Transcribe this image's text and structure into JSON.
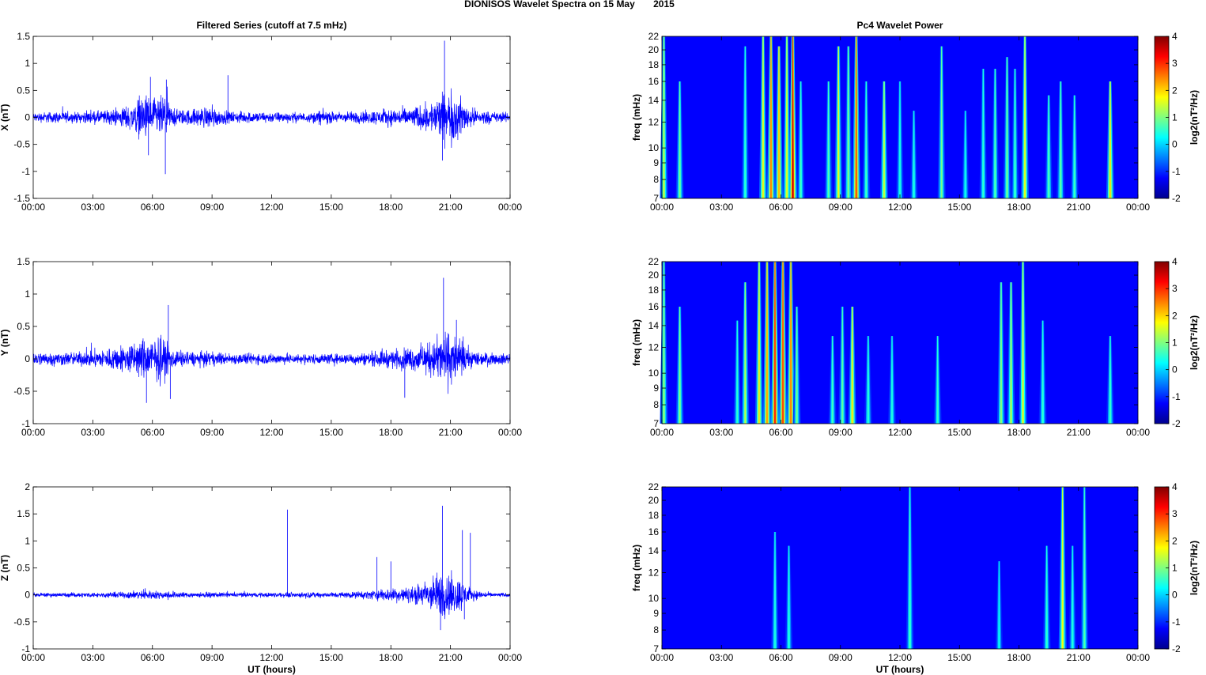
{
  "figure": {
    "title": "DIONISOS Wavelet Spectra on 15 May       2015"
  },
  "chart_data": [
    {
      "type": "line",
      "panel": "left-top",
      "title": "Filtered Series (cutoff at 7.5 mHz)",
      "xlabel": "",
      "ylabel": "X (nT)",
      "xlim": [
        0,
        24
      ],
      "ylim": [
        -1.5,
        1.5
      ],
      "yticks": [
        -1.5,
        -1,
        -0.5,
        0,
        0.5,
        1,
        1.5
      ],
      "ytick_labels": [
        "-1.5",
        "-1",
        "-0.5",
        "0",
        "0.5",
        "1",
        "1.5"
      ],
      "xticks": [
        0,
        3,
        6,
        9,
        12,
        15,
        18,
        21,
        24
      ],
      "xtick_labels": [
        "00:00",
        "03:00",
        "06:00",
        "09:00",
        "12:00",
        "15:00",
        "18:00",
        "21:00",
        "00:00"
      ],
      "series": [
        {
          "color": "#0000ff",
          "envelope": [
            [
              0,
              0.12
            ],
            [
              1,
              0.15
            ],
            [
              2,
              0.13
            ],
            [
              3,
              0.16
            ],
            [
              4,
              0.2
            ],
            [
              5,
              0.35
            ],
            [
              5.5,
              0.6
            ],
            [
              6,
              0.5
            ],
            [
              6.5,
              0.55
            ],
            [
              6.8,
              0.4
            ],
            [
              7,
              0.25
            ],
            [
              7.5,
              0.2
            ],
            [
              8,
              0.22
            ],
            [
              9,
              0.3
            ],
            [
              9.5,
              0.18
            ],
            [
              10,
              0.15
            ],
            [
              11,
              0.15
            ],
            [
              12,
              0.14
            ],
            [
              13,
              0.13
            ],
            [
              14,
              0.12
            ],
            [
              14.5,
              0.2
            ],
            [
              15,
              0.15
            ],
            [
              16,
              0.15
            ],
            [
              17,
              0.18
            ],
            [
              18,
              0.22
            ],
            [
              19,
              0.25
            ],
            [
              20,
              0.4
            ],
            [
              20.5,
              0.6
            ],
            [
              21,
              0.7
            ],
            [
              21.5,
              0.5
            ],
            [
              22,
              0.25
            ],
            [
              23,
              0.15
            ],
            [
              24,
              0.12
            ]
          ],
          "spikes": [
            [
              5.8,
              -0.7
            ],
            [
              6.65,
              -1.05
            ],
            [
              6.7,
              0.7
            ],
            [
              9.8,
              0.78
            ],
            [
              20.7,
              1.42
            ],
            [
              20.6,
              -0.8
            ],
            [
              5.9,
              0.75
            ]
          ]
        }
      ],
      "grid": false
    },
    {
      "type": "line",
      "panel": "left-middle",
      "title": "",
      "xlabel": "",
      "ylabel": "Y (nT)",
      "xlim": [
        0,
        24
      ],
      "ylim": [
        -1,
        1.5
      ],
      "yticks": [
        -1,
        -0.5,
        0,
        0.5,
        1,
        1.5
      ],
      "ytick_labels": [
        "-1",
        "-0.5",
        "0",
        "0.5",
        "1",
        "1.5"
      ],
      "xticks": [
        0,
        3,
        6,
        9,
        12,
        15,
        18,
        21,
        24
      ],
      "xtick_labels": [
        "00:00",
        "03:00",
        "06:00",
        "09:00",
        "12:00",
        "15:00",
        "18:00",
        "21:00",
        "00:00"
      ],
      "series": [
        {
          "color": "#0000ff",
          "envelope": [
            [
              0,
              0.15
            ],
            [
              1,
              0.15
            ],
            [
              2,
              0.14
            ],
            [
              3,
              0.18
            ],
            [
              4,
              0.25
            ],
            [
              5,
              0.35
            ],
            [
              5.5,
              0.45
            ],
            [
              6,
              0.45
            ],
            [
              6.5,
              0.5
            ],
            [
              6.8,
              0.35
            ],
            [
              7,
              0.2
            ],
            [
              8,
              0.16
            ],
            [
              9,
              0.15
            ],
            [
              10,
              0.12
            ],
            [
              11,
              0.12
            ],
            [
              12,
              0.12
            ],
            [
              13,
              0.11
            ],
            [
              14,
              0.11
            ],
            [
              15,
              0.11
            ],
            [
              16,
              0.12
            ],
            [
              17,
              0.15
            ],
            [
              18,
              0.2
            ],
            [
              19,
              0.25
            ],
            [
              20,
              0.35
            ],
            [
              20.5,
              0.55
            ],
            [
              21,
              0.6
            ],
            [
              21.5,
              0.4
            ],
            [
              22,
              0.2
            ],
            [
              23,
              0.12
            ],
            [
              24,
              0.12
            ]
          ],
          "spikes": [
            [
              6.8,
              0.83
            ],
            [
              5.7,
              -0.68
            ],
            [
              6.9,
              -0.62
            ],
            [
              18.7,
              -0.6
            ],
            [
              20.65,
              1.25
            ],
            [
              21.3,
              0.6
            ]
          ]
        }
      ],
      "grid": false
    },
    {
      "type": "line",
      "panel": "left-bottom",
      "title": "",
      "xlabel": "UT (hours)",
      "ylabel": "Z (nT)",
      "xlim": [
        0,
        24
      ],
      "ylim": [
        -1,
        2
      ],
      "yticks": [
        -1,
        -0.5,
        0,
        0.5,
        1,
        1.5,
        2
      ],
      "ytick_labels": [
        "-1",
        "-0.5",
        "0",
        "0.5",
        "1",
        "1.5",
        "2"
      ],
      "xticks": [
        0,
        3,
        6,
        9,
        12,
        15,
        18,
        21,
        24
      ],
      "xtick_labels": [
        "00:00",
        "03:00",
        "06:00",
        "09:00",
        "12:00",
        "15:00",
        "18:00",
        "21:00",
        "00:00"
      ],
      "series": [
        {
          "color": "#0000ff",
          "envelope": [
            [
              0,
              0.05
            ],
            [
              2,
              0.06
            ],
            [
              4,
              0.07
            ],
            [
              5.5,
              0.12
            ],
            [
              6.5,
              0.1
            ],
            [
              8,
              0.07
            ],
            [
              10,
              0.06
            ],
            [
              12,
              0.06
            ],
            [
              14,
              0.07
            ],
            [
              16,
              0.08
            ],
            [
              17,
              0.12
            ],
            [
              18,
              0.18
            ],
            [
              19,
              0.2
            ],
            [
              19.5,
              0.3
            ],
            [
              20,
              0.45
            ],
            [
              20.5,
              0.6
            ],
            [
              21,
              0.55
            ],
            [
              21.5,
              0.45
            ],
            [
              22,
              0.15
            ],
            [
              23,
              0.06
            ],
            [
              24,
              0.05
            ]
          ],
          "spikes": [
            [
              12.8,
              1.58
            ],
            [
              20.6,
              1.65
            ],
            [
              20.5,
              -0.65
            ],
            [
              21.6,
              1.2
            ],
            [
              22,
              1.15
            ],
            [
              17.3,
              0.7
            ],
            [
              18,
              0.62
            ],
            [
              21.7,
              -0.45
            ]
          ]
        }
      ],
      "grid": false
    },
    {
      "type": "heatmap",
      "panel": "right-top",
      "title": "Pc4 Wavelet Power",
      "xlabel": "",
      "ylabel": "freq (mHz)",
      "xlim": [
        0,
        24
      ],
      "ylim": [
        7,
        22
      ],
      "yticks": [
        7,
        8,
        9,
        10,
        12,
        14,
        16,
        18,
        20,
        22
      ],
      "ytick_labels": [
        "7",
        "8",
        "9",
        "10",
        "12",
        "14",
        "16",
        "18",
        "20",
        "22"
      ],
      "xticks": [
        0,
        3,
        6,
        9,
        12,
        15,
        18,
        21,
        24
      ],
      "xtick_labels": [
        "00:00",
        "03:00",
        "06:00",
        "09:00",
        "12:00",
        "15:00",
        "18:00",
        "21:00",
        "00:00"
      ],
      "colorbar": {
        "label": "log2(nT²/Hz)",
        "range": [
          -2,
          4
        ],
        "ticks": [
          -2,
          -1,
          0,
          1,
          2,
          3,
          4
        ],
        "tick_labels": [
          "-2",
          "-1",
          "0",
          "1",
          "2",
          "3",
          "4"
        ],
        "colormap": "jet"
      },
      "features": [
        [
          0.1,
          1.0,
          1.3
        ],
        [
          0.9,
          0.6,
          0.8
        ],
        [
          4.2,
          0.9,
          0.4
        ],
        [
          5.1,
          1.0,
          1.7
        ],
        [
          5.5,
          1.0,
          2.6
        ],
        [
          5.9,
          0.9,
          2.2
        ],
        [
          6.3,
          1.0,
          1.6
        ],
        [
          6.6,
          1.0,
          3.6
        ],
        [
          7.0,
          0.6,
          0.5
        ],
        [
          8.4,
          0.6,
          0.6
        ],
        [
          8.9,
          0.9,
          1.6
        ],
        [
          9.4,
          0.9,
          0.9
        ],
        [
          9.8,
          1.0,
          2.9
        ],
        [
          10.3,
          0.6,
          0.5
        ],
        [
          11.2,
          0.6,
          1.4
        ],
        [
          12.0,
          0.6,
          0.3
        ],
        [
          12.7,
          0.4,
          0.3
        ],
        [
          14.1,
          0.9,
          0.8
        ],
        [
          15.3,
          0.4,
          0.2
        ],
        [
          16.2,
          0.7,
          0.4
        ],
        [
          16.8,
          0.7,
          0.6
        ],
        [
          17.4,
          0.8,
          0.8
        ],
        [
          17.8,
          0.7,
          0.5
        ],
        [
          18.3,
          1.0,
          1.6
        ],
        [
          19.5,
          0.5,
          0.6
        ],
        [
          20.1,
          0.6,
          0.7
        ],
        [
          20.8,
          0.5,
          0.5
        ],
        [
          22.6,
          0.6,
          1.9
        ]
      ]
    },
    {
      "type": "heatmap",
      "panel": "right-middle",
      "title": "",
      "xlabel": "",
      "ylabel": "freq (mHz)",
      "xlim": [
        0,
        24
      ],
      "ylim": [
        7,
        22
      ],
      "yticks": [
        7,
        8,
        9,
        10,
        12,
        14,
        16,
        18,
        20,
        22
      ],
      "ytick_labels": [
        "7",
        "8",
        "9",
        "10",
        "12",
        "14",
        "16",
        "18",
        "20",
        "22"
      ],
      "xticks": [
        0,
        3,
        6,
        9,
        12,
        15,
        18,
        21,
        24
      ],
      "xtick_labels": [
        "00:00",
        "03:00",
        "06:00",
        "09:00",
        "12:00",
        "15:00",
        "18:00",
        "21:00",
        "00:00"
      ],
      "colorbar": {
        "label": "log2(nT²/Hz)",
        "range": [
          -2,
          4
        ],
        "ticks": [
          -2,
          -1,
          0,
          1,
          2,
          3,
          4
        ],
        "tick_labels": [
          "-2",
          "-1",
          "0",
          "1",
          "2",
          "3",
          "4"
        ],
        "colormap": "jet"
      },
      "features": [
        [
          0.1,
          1.0,
          1.0
        ],
        [
          0.9,
          0.6,
          0.9
        ],
        [
          3.8,
          0.5,
          0.4
        ],
        [
          4.2,
          0.8,
          1.2
        ],
        [
          4.9,
          1.0,
          1.8
        ],
        [
          5.3,
          1.0,
          2.4
        ],
        [
          5.7,
          1.0,
          3.2
        ],
        [
          6.1,
          1.0,
          3.0
        ],
        [
          6.5,
          1.0,
          2.6
        ],
        [
          6.8,
          0.6,
          0.8
        ],
        [
          8.6,
          0.4,
          0.5
        ],
        [
          9.1,
          0.6,
          0.7
        ],
        [
          9.6,
          0.6,
          1.8
        ],
        [
          10.4,
          0.4,
          0.4
        ],
        [
          11.6,
          0.4,
          0.3
        ],
        [
          13.9,
          0.4,
          0.4
        ],
        [
          17.1,
          0.8,
          1.0
        ],
        [
          17.6,
          0.8,
          1.2
        ],
        [
          18.2,
          1.0,
          1.5
        ],
        [
          19.2,
          0.5,
          0.4
        ],
        [
          22.6,
          0.4,
          0.5
        ]
      ]
    },
    {
      "type": "heatmap",
      "panel": "right-bottom",
      "title": "",
      "xlabel": "UT (hours)",
      "ylabel": "freq (mHz)",
      "xlim": [
        0,
        24
      ],
      "ylim": [
        7,
        22
      ],
      "yticks": [
        7,
        8,
        9,
        10,
        12,
        14,
        16,
        18,
        20,
        22
      ],
      "ytick_labels": [
        "7",
        "8",
        "9",
        "10",
        "12",
        "14",
        "16",
        "18",
        "20",
        "22"
      ],
      "xticks": [
        0,
        3,
        6,
        9,
        12,
        15,
        18,
        21,
        24
      ],
      "xtick_labels": [
        "00:00",
        "03:00",
        "06:00",
        "09:00",
        "12:00",
        "15:00",
        "18:00",
        "21:00",
        "00:00"
      ],
      "colorbar": {
        "label": "log2(nT²/Hz)",
        "range": [
          -2,
          4
        ],
        "ticks": [
          -2,
          -1,
          0,
          1,
          2,
          3,
          4
        ],
        "tick_labels": [
          "-2",
          "-1",
          "0",
          "1",
          "2",
          "3",
          "4"
        ],
        "colormap": "jet"
      },
      "features": [
        [
          5.7,
          0.6,
          0.3
        ],
        [
          6.4,
          0.5,
          0.3
        ],
        [
          12.5,
          1.0,
          0.5
        ],
        [
          17.0,
          0.4,
          0.1
        ],
        [
          19.4,
          0.5,
          0.4
        ],
        [
          20.2,
          1.0,
          1.6
        ],
        [
          20.7,
          0.5,
          0.3
        ],
        [
          21.3,
          1.0,
          0.6
        ]
      ]
    }
  ]
}
